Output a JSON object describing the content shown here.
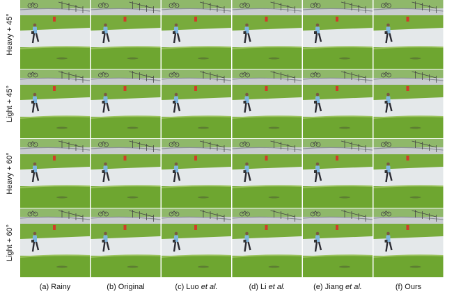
{
  "rows": [
    "Heavy + 45°",
    "Light + 45°",
    "Heavy + 60°",
    "Light + 60°"
  ],
  "columns": [
    {
      "text": "(a) Rainy"
    },
    {
      "text": "(b) Original"
    },
    {
      "text": "(c) Luo ",
      "italic": "et al."
    },
    {
      "text": "(d) Li ",
      "italic": "et al."
    },
    {
      "text": "(e) Jiang ",
      "italic": "et al."
    },
    {
      "text": "(f) Ours"
    }
  ]
}
